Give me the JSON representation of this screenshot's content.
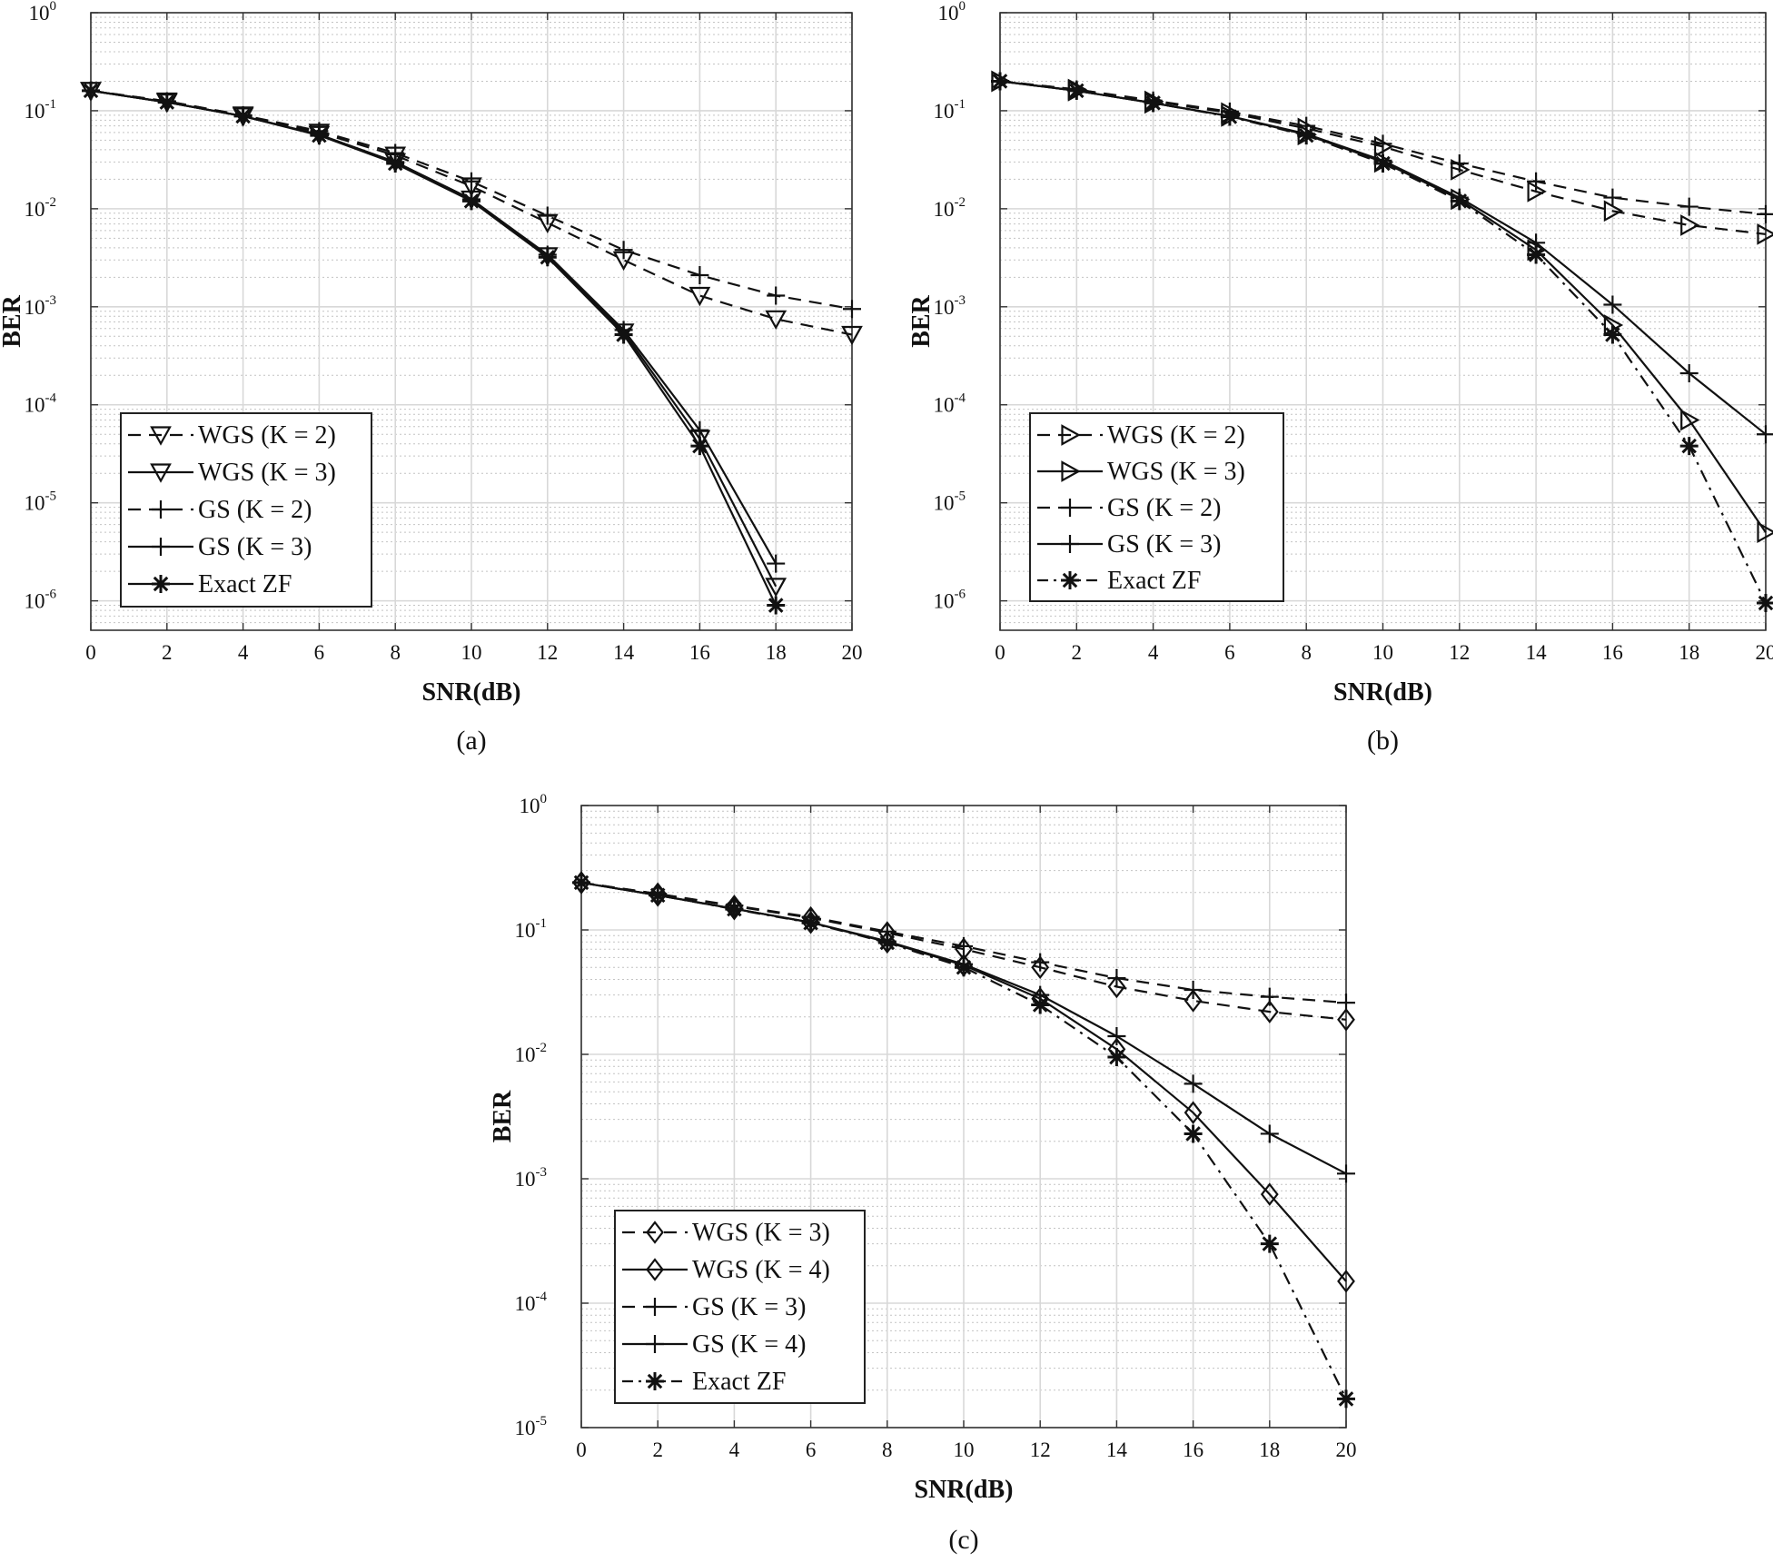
{
  "chart_data": [
    {
      "type": "line",
      "panel_label": "(a)",
      "xlabel": "SNR(dB)",
      "ylabel": "BER",
      "xlim": [
        0,
        20
      ],
      "ylim_log10": [
        -6.3,
        0
      ],
      "xticks": [
        "0",
        "2",
        "4",
        "6",
        "8",
        "10",
        "12",
        "14",
        "16",
        "18",
        "20"
      ],
      "yticks": [
        {
          "base": "10",
          "exp": "0"
        },
        {
          "base": "10",
          "exp": "-1"
        },
        {
          "base": "10",
          "exp": "-2"
        },
        {
          "base": "10",
          "exp": "-3"
        },
        {
          "base": "10",
          "exp": "-4"
        },
        {
          "base": "10",
          "exp": "-5"
        },
        {
          "base": "10",
          "exp": "-6"
        }
      ],
      "legend_position": "bottom-left",
      "series": [
        {
          "name": "WGS (K = 2)",
          "line": "dashed",
          "marker": "triangle-down",
          "x": [
            0,
            2,
            4,
            6,
            8,
            10,
            12,
            14,
            16,
            18,
            20
          ],
          "y": [
            0.16,
            0.125,
            0.09,
            0.06,
            0.035,
            0.017,
            0.0072,
            0.003,
            0.0013,
            0.00075,
            0.00052
          ]
        },
        {
          "name": "WGS (K = 3)",
          "line": "solid",
          "marker": "triangle-down",
          "x": [
            0,
            2,
            4,
            6,
            8,
            10,
            12,
            14,
            16,
            18
          ],
          "y": [
            0.16,
            0.122,
            0.088,
            0.057,
            0.03,
            0.0125,
            0.0033,
            0.00055,
            4.5e-05,
            1.4e-06
          ]
        },
        {
          "name": "GS (K = 2)",
          "line": "dashed",
          "marker": "plus",
          "x": [
            0,
            2,
            4,
            6,
            8,
            10,
            12,
            14,
            16,
            18,
            20
          ],
          "y": [
            0.16,
            0.125,
            0.09,
            0.062,
            0.037,
            0.019,
            0.0085,
            0.0038,
            0.0021,
            0.0013,
            0.00095
          ]
        },
        {
          "name": "GS (K = 3)",
          "line": "solid",
          "marker": "plus",
          "x": [
            0,
            2,
            4,
            6,
            8,
            10,
            12,
            14,
            16,
            18
          ],
          "y": [
            0.16,
            0.122,
            0.088,
            0.057,
            0.03,
            0.0125,
            0.0034,
            0.00058,
            5.5e-05,
            2.4e-06
          ]
        },
        {
          "name": "Exact ZF",
          "line": "solid",
          "marker": "asterisk",
          "x": [
            0,
            2,
            4,
            6,
            8,
            10,
            12,
            14,
            16,
            18
          ],
          "y": [
            0.16,
            0.122,
            0.088,
            0.056,
            0.029,
            0.012,
            0.0032,
            0.00052,
            3.8e-05,
            9e-07
          ]
        }
      ]
    },
    {
      "type": "line",
      "panel_label": "(b)",
      "xlabel": "SNR(dB)",
      "ylabel": "BER",
      "xlim": [
        0,
        20
      ],
      "ylim_log10": [
        -6.3,
        0
      ],
      "xticks": [
        "0",
        "2",
        "4",
        "6",
        "8",
        "10",
        "12",
        "14",
        "16",
        "18",
        "20"
      ],
      "yticks": [
        {
          "base": "10",
          "exp": "0"
        },
        {
          "base": "10",
          "exp": "-1"
        },
        {
          "base": "10",
          "exp": "-2"
        },
        {
          "base": "10",
          "exp": "-3"
        },
        {
          "base": "10",
          "exp": "-4"
        },
        {
          "base": "10",
          "exp": "-5"
        },
        {
          "base": "10",
          "exp": "-6"
        }
      ],
      "legend_position": "bottom-left",
      "series": [
        {
          "name": "WGS (K = 2)",
          "line": "dashed",
          "marker": "triangle-right",
          "x": [
            0,
            2,
            4,
            6,
            8,
            10,
            12,
            14,
            16,
            18,
            20
          ],
          "y": [
            0.2,
            0.165,
            0.125,
            0.095,
            0.066,
            0.043,
            0.025,
            0.015,
            0.0095,
            0.0068,
            0.0055
          ]
        },
        {
          "name": "WGS (K = 3)",
          "line": "solid",
          "marker": "triangle-right",
          "x": [
            0,
            2,
            4,
            6,
            8,
            10,
            12,
            14,
            16,
            18,
            20
          ],
          "y": [
            0.2,
            0.16,
            0.12,
            0.088,
            0.057,
            0.03,
            0.0125,
            0.0038,
            0.00065,
            7e-05,
            5e-06
          ]
        },
        {
          "name": "GS (K = 2)",
          "line": "dashed",
          "marker": "plus",
          "x": [
            0,
            2,
            4,
            6,
            8,
            10,
            12,
            14,
            16,
            18,
            20
          ],
          "y": [
            0.2,
            0.165,
            0.127,
            0.098,
            0.07,
            0.046,
            0.029,
            0.019,
            0.013,
            0.0105,
            0.0088
          ]
        },
        {
          "name": "GS (K = 3)",
          "line": "solid",
          "marker": "plus",
          "x": [
            0,
            2,
            4,
            6,
            8,
            10,
            12,
            14,
            16,
            18,
            20
          ],
          "y": [
            0.2,
            0.16,
            0.12,
            0.088,
            0.058,
            0.031,
            0.013,
            0.0045,
            0.00105,
            0.00021,
            5e-05
          ]
        },
        {
          "name": "Exact ZF",
          "line": "dashdot",
          "marker": "asterisk",
          "x": [
            0,
            2,
            4,
            6,
            8,
            10,
            12,
            14,
            16,
            18,
            20
          ],
          "y": [
            0.2,
            0.16,
            0.12,
            0.087,
            0.056,
            0.029,
            0.012,
            0.0034,
            0.00052,
            3.8e-05,
            9.5e-07
          ]
        }
      ]
    },
    {
      "type": "line",
      "panel_label": "(c)",
      "xlabel": "SNR(dB)",
      "ylabel": "BER",
      "xlim": [
        0,
        20
      ],
      "ylim_log10": [
        -5,
        0
      ],
      "xticks": [
        "0",
        "2",
        "4",
        "6",
        "8",
        "10",
        "12",
        "14",
        "16",
        "18",
        "20"
      ],
      "yticks": [
        {
          "base": "10",
          "exp": "0"
        },
        {
          "base": "10",
          "exp": "-1"
        },
        {
          "base": "10",
          "exp": "-2"
        },
        {
          "base": "10",
          "exp": "-3"
        },
        {
          "base": "10",
          "exp": "-4"
        },
        {
          "base": "10",
          "exp": "-5"
        }
      ],
      "legend_position": "bottom-left",
      "series": [
        {
          "name": "WGS (K = 3)",
          "line": "dashed",
          "marker": "diamond",
          "x": [
            0,
            2,
            4,
            6,
            8,
            10,
            12,
            14,
            16,
            18,
            20
          ],
          "y": [
            0.24,
            0.195,
            0.155,
            0.125,
            0.095,
            0.07,
            0.05,
            0.035,
            0.027,
            0.022,
            0.019
          ]
        },
        {
          "name": "WGS (K = 4)",
          "line": "solid",
          "marker": "diamond",
          "x": [
            0,
            2,
            4,
            6,
            8,
            10,
            12,
            14,
            16,
            18,
            20
          ],
          "y": [
            0.24,
            0.19,
            0.148,
            0.115,
            0.08,
            0.052,
            0.028,
            0.011,
            0.0034,
            0.00075,
            0.00015
          ]
        },
        {
          "name": "GS (K = 3)",
          "line": "dashed",
          "marker": "plus",
          "x": [
            0,
            2,
            4,
            6,
            8,
            10,
            12,
            14,
            16,
            18,
            20
          ],
          "y": [
            0.24,
            0.195,
            0.157,
            0.127,
            0.097,
            0.074,
            0.055,
            0.041,
            0.033,
            0.029,
            0.026
          ]
        },
        {
          "name": "GS (K = 4)",
          "line": "solid",
          "marker": "plus",
          "x": [
            0,
            2,
            4,
            6,
            8,
            10,
            12,
            14,
            16,
            18,
            20
          ],
          "y": [
            0.24,
            0.19,
            0.148,
            0.115,
            0.081,
            0.053,
            0.03,
            0.014,
            0.0058,
            0.0023,
            0.0011
          ]
        },
        {
          "name": "Exact ZF",
          "line": "dashdot",
          "marker": "asterisk",
          "x": [
            0,
            2,
            4,
            6,
            8,
            10,
            12,
            14,
            16,
            18,
            20
          ],
          "y": [
            0.24,
            0.19,
            0.147,
            0.114,
            0.079,
            0.05,
            0.025,
            0.0095,
            0.0023,
            0.0003,
            1.7e-05
          ]
        }
      ]
    }
  ]
}
